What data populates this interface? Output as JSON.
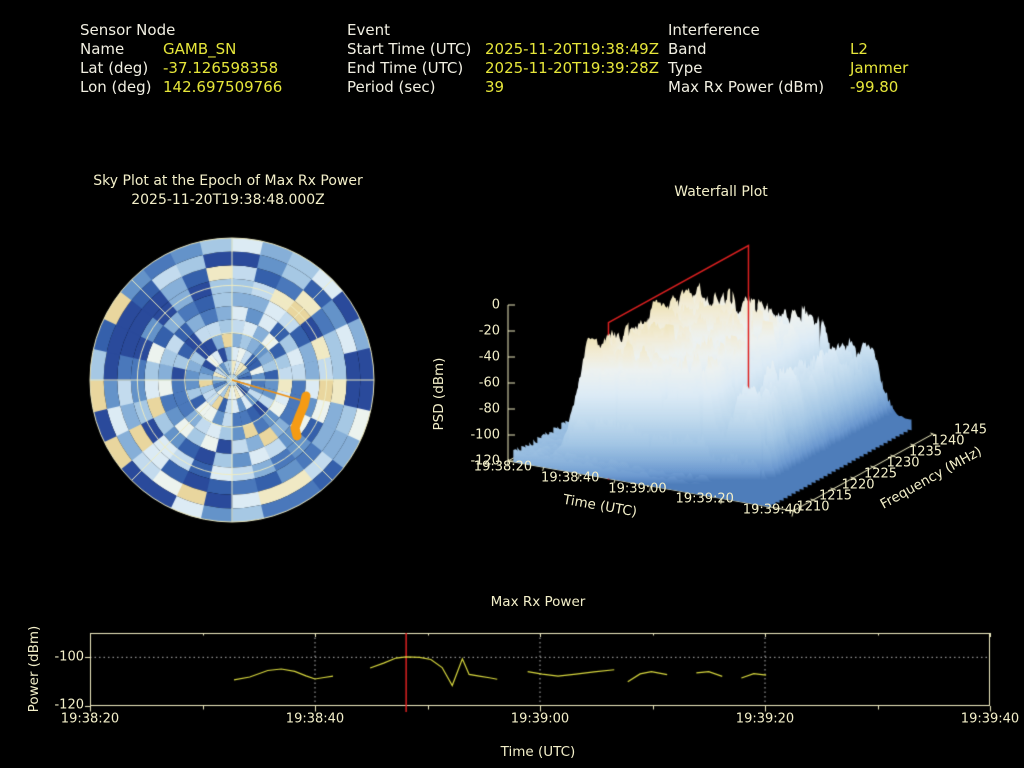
{
  "header": {
    "sensor": {
      "title": "Sensor Node",
      "rows": [
        {
          "label": "Name",
          "value": "GAMB_SN"
        },
        {
          "label": "Lat (deg)",
          "value": "-37.126598358"
        },
        {
          "label": "Lon (deg)",
          "value": "142.697509766"
        }
      ]
    },
    "event": {
      "title": "Event",
      "rows": [
        {
          "label": "Start Time (UTC)",
          "value": "2025-11-20T19:38:49Z"
        },
        {
          "label": "End Time (UTC)",
          "value": "2025-11-20T19:39:28Z"
        },
        {
          "label": "Period (sec)",
          "value": "39"
        }
      ]
    },
    "interference": {
      "title": "Interference",
      "rows": [
        {
          "label": "Band",
          "value": "L2"
        },
        {
          "label": "Type",
          "value": "Jammer"
        },
        {
          "label": "Max Rx Power (dBm)",
          "value": "-99.80"
        }
      ]
    }
  },
  "colors": {
    "background": "#000000",
    "label_text": "#f1efe2",
    "value_text": "#e6e63a",
    "chart_text": "#f3efc9",
    "axis": "#f0edc2",
    "series_line": "#d8d83e",
    "epoch_red": "#dd2020",
    "grid_dotted": "#b8b8b8",
    "jammer_orange": "#f59b14"
  },
  "chart_data": [
    {
      "type": "heatmap",
      "name": "sky-plot",
      "title": "Sky Plot at the Epoch of Max Rx Power",
      "subtitle": "2025-11-20T19:38:48.000Z",
      "projection": "polar-azimuth-elevation",
      "elevation_rings_deg": [
        0,
        30,
        60
      ],
      "azimuth_spokes_deg": [
        0,
        45,
        90,
        135,
        180,
        225,
        270,
        315
      ],
      "radial_bins": 10,
      "angular_bins": 28,
      "palette": [
        "#2a4a9b",
        "#3560ab",
        "#4a78bb",
        "#6493c9",
        "#86afd8",
        "#a6c8e4",
        "#c3dbee",
        "#dcebf4",
        "#ecf3ee",
        "#f0e9c4",
        "#e9d69e"
      ],
      "jammer_track": {
        "azimuth_deg": 117,
        "elevation_deg_range": [
          22,
          45
        ],
        "ray_from_center": true
      }
    },
    {
      "type": "heatmap",
      "name": "waterfall-plot",
      "title": "Waterfall Plot",
      "zlabel": "PSD (dBm)",
      "xlabel": "Time (UTC)",
      "ylabel": "Frequency (MHz)",
      "z_ticks": [
        "0",
        "-20",
        "-40",
        "-60",
        "-80",
        "-100",
        "-120"
      ],
      "x_ticks": [
        "19:38:20",
        "19:38:40",
        "19:39:00",
        "19:39:20",
        "19:39:40"
      ],
      "y_ticks": [
        "1210",
        "1215",
        "1220",
        "1225",
        "1230",
        "1235",
        "1240",
        "1245"
      ],
      "z_range_dbm": [
        -120,
        0
      ],
      "x_range_sec": [
        0,
        80
      ],
      "y_range_mhz": [
        1210,
        1245
      ],
      "epoch_marker": {
        "time": "19:38:48",
        "time_offset_sec": 28.2
      },
      "surface_model": {
        "noise_floor_dbm": -113,
        "plateau_dbm": -33,
        "signal_time_sec": [
          12,
          60
        ],
        "tail_time_sec": [
          60,
          73
        ],
        "signal_freq_mhz": [
          1212,
          1243
        ]
      }
    },
    {
      "type": "line",
      "name": "max-rx-power",
      "title": "Max Rx Power",
      "xlabel": "Time (UTC)",
      "ylabel": "Power (dBm)",
      "x_ticks": [
        "19:38:20",
        "19:38:40",
        "19:39:00",
        "19:39:20",
        "19:39:40"
      ],
      "y_ticks": [
        "-100",
        "-120"
      ],
      "ylim": [
        -120,
        -90
      ],
      "x_range_sec": [
        0,
        80
      ],
      "dotted_hline_dbm": -100,
      "epoch_vline": {
        "time": "19:38:48",
        "time_offset_sec": 28.1
      },
      "series": [
        {
          "name": "Max Rx Power (dBm)",
          "segments": [
            [
              [
                12.8,
                -109.3
              ],
              [
                14.2,
                -108.1
              ],
              [
                15.8,
                -105.4
              ],
              [
                17.0,
                -104.8
              ],
              [
                18.2,
                -105.8
              ],
              [
                19.2,
                -107.6
              ],
              [
                20.0,
                -108.9
              ],
              [
                20.8,
                -108.3
              ],
              [
                21.6,
                -107.7
              ]
            ],
            [
              [
                24.9,
                -104.4
              ],
              [
                26.1,
                -102.4
              ],
              [
                27.2,
                -100.3
              ],
              [
                28.1,
                -99.8
              ],
              [
                29.3,
                -100.0
              ],
              [
                30.3,
                -100.9
              ],
              [
                31.3,
                -104.2
              ],
              [
                32.2,
                -111.6
              ],
              [
                33.1,
                -100.6
              ],
              [
                33.7,
                -107.0
              ],
              [
                34.6,
                -107.7
              ],
              [
                35.5,
                -108.4
              ],
              [
                36.2,
                -109.0
              ]
            ],
            [
              [
                38.9,
                -105.9
              ],
              [
                40.2,
                -106.9
              ],
              [
                41.6,
                -107.7
              ],
              [
                43.2,
                -106.9
              ],
              [
                44.8,
                -106.0
              ],
              [
                46.6,
                -105.1
              ]
            ],
            [
              [
                47.8,
                -110.0
              ],
              [
                48.9,
                -106.8
              ],
              [
                49.9,
                -105.9
              ],
              [
                51.3,
                -107.1
              ]
            ],
            [
              [
                53.9,
                -106.4
              ],
              [
                55.0,
                -105.9
              ],
              [
                56.2,
                -107.8
              ]
            ],
            [
              [
                57.9,
                -108.5
              ],
              [
                59.0,
                -106.7
              ],
              [
                60.1,
                -107.3
              ]
            ]
          ]
        }
      ]
    }
  ]
}
